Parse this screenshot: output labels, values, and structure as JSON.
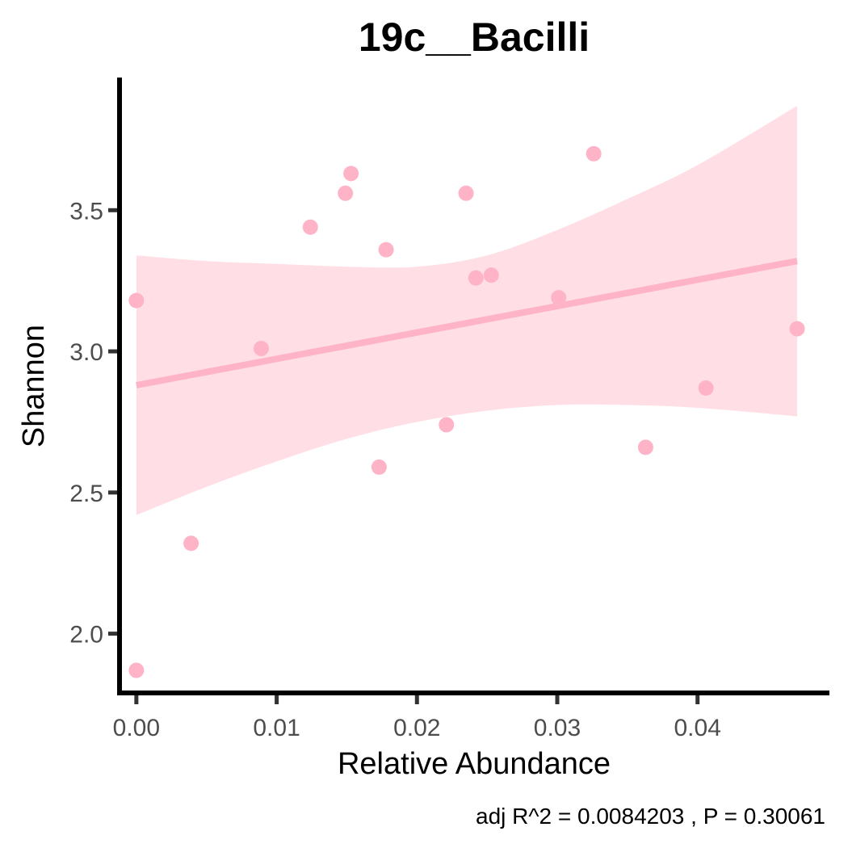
{
  "chart_data": {
    "type": "scatter",
    "title": "19c__Bacilli",
    "xlabel": "Relative Abundance",
    "ylabel": "Shannon",
    "caption": "adj R^2 =  0.0084203 , P = 0.30061",
    "xlim": [
      -0.0012,
      0.0494
    ],
    "ylim": [
      1.79,
      3.97
    ],
    "x_ticks": [
      0,
      0.01,
      0.02,
      0.03,
      0.04
    ],
    "x_tick_labels": [
      "0.00",
      "0.01",
      "0.02",
      "0.03",
      "0.04"
    ],
    "y_ticks": [
      2.0,
      2.5,
      3.0,
      3.5
    ],
    "y_tick_labels": [
      "2.0",
      "2.5",
      "3.0",
      "3.5"
    ],
    "grid": false,
    "legend": "none",
    "point_color": "#ffb3c6",
    "line_color": "#ffb3c6",
    "band_color": "#ffdfe5",
    "axis_color": "#000000",
    "points": [
      {
        "x": 0.0,
        "y": 3.18
      },
      {
        "x": 0.0,
        "y": 1.87
      },
      {
        "x": 0.0039,
        "y": 2.32
      },
      {
        "x": 0.0089,
        "y": 3.01
      },
      {
        "x": 0.0124,
        "y": 3.44
      },
      {
        "x": 0.0149,
        "y": 3.56
      },
      {
        "x": 0.0153,
        "y": 3.63
      },
      {
        "x": 0.0173,
        "y": 2.59
      },
      {
        "x": 0.0178,
        "y": 3.36
      },
      {
        "x": 0.0221,
        "y": 2.74
      },
      {
        "x": 0.0235,
        "y": 3.56
      },
      {
        "x": 0.0242,
        "y": 3.26
      },
      {
        "x": 0.0253,
        "y": 3.27
      },
      {
        "x": 0.0301,
        "y": 3.19
      },
      {
        "x": 0.0326,
        "y": 3.7
      },
      {
        "x": 0.0363,
        "y": 2.66
      },
      {
        "x": 0.0406,
        "y": 2.87
      },
      {
        "x": 0.0471,
        "y": 3.08
      }
    ],
    "fit_line": [
      {
        "x": 0.0,
        "y": 2.88
      },
      {
        "x": 0.0471,
        "y": 3.32
      }
    ],
    "confidence_band": [
      {
        "x": 0.0,
        "lower": 2.42,
        "upper": 3.34
      },
      {
        "x": 0.005,
        "lower": 2.52,
        "upper": 3.32
      },
      {
        "x": 0.01,
        "lower": 2.61,
        "upper": 3.31
      },
      {
        "x": 0.015,
        "lower": 2.69,
        "upper": 3.3
      },
      {
        "x": 0.02,
        "lower": 2.75,
        "upper": 3.3
      },
      {
        "x": 0.025,
        "lower": 2.79,
        "upper": 3.34
      },
      {
        "x": 0.03,
        "lower": 2.81,
        "upper": 3.43
      },
      {
        "x": 0.035,
        "lower": 2.81,
        "upper": 3.54
      },
      {
        "x": 0.04,
        "lower": 2.8,
        "upper": 3.66
      },
      {
        "x": 0.0471,
        "lower": 2.77,
        "upper": 3.87
      }
    ]
  }
}
